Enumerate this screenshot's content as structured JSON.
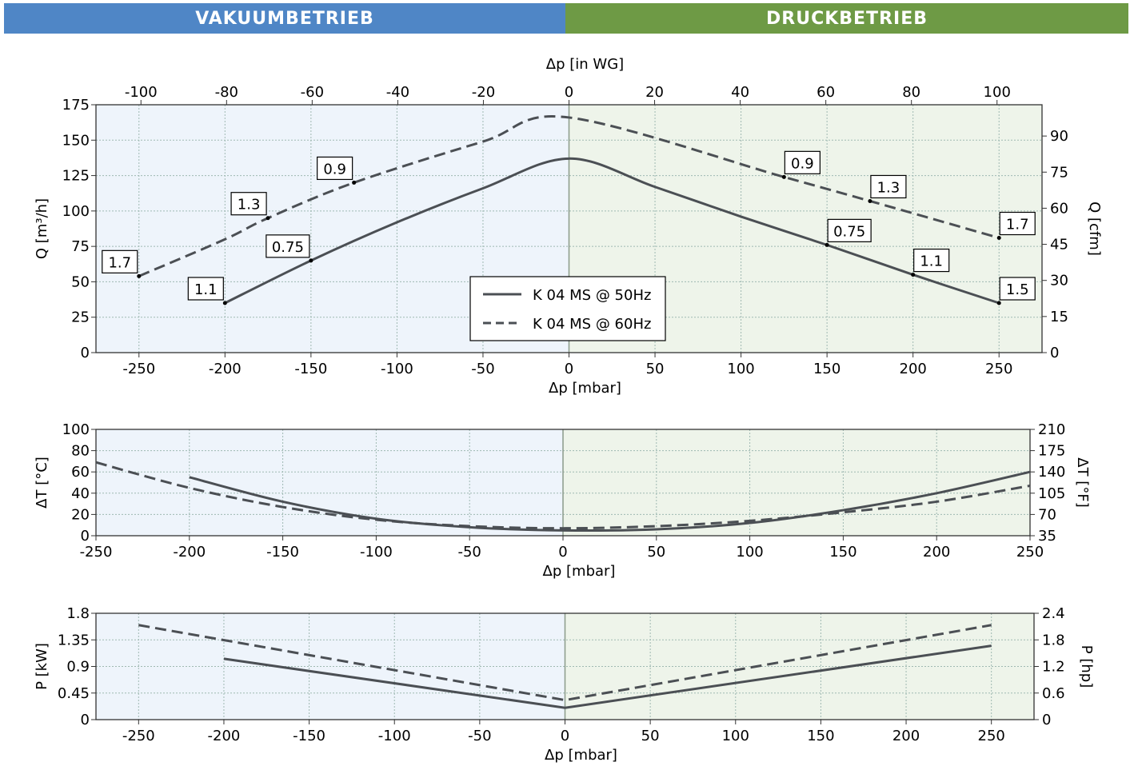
{
  "banners": {
    "left": {
      "label": "VAKUUMBETRIEB",
      "color": "#4f86c6"
    },
    "right": {
      "label": "DRUCKBETRIEB",
      "color": "#6e9a45"
    }
  },
  "colors": {
    "vacuum_bg": "#eef4fb",
    "pressure_bg": "#eef4ea",
    "line": "#4b4f54",
    "grid": "#9fb9b2"
  },
  "legend": {
    "items": [
      {
        "label": "K 04 MS @ 50Hz",
        "style": "solid"
      },
      {
        "label": "K 04 MS @ 60Hz",
        "style": "dashed"
      }
    ]
  },
  "chart_data": [
    {
      "type": "line",
      "xlabel": "Δp [mbar]",
      "xlabel_top": "Δp [in WG]",
      "ylabel": "Q [m³/h]",
      "ylabel_right": "Q [cfm]",
      "xlim": [
        -275,
        275
      ],
      "ylim": [
        0,
        175
      ],
      "ylim_right": [
        0,
        103
      ],
      "x_ticks": [
        -250,
        -200,
        -150,
        -100,
        -50,
        0,
        50,
        100,
        150,
        200,
        250
      ],
      "x_ticks_top": [
        -100,
        -80,
        -60,
        -40,
        -20,
        0,
        20,
        40,
        60,
        80,
        100
      ],
      "y_ticks": [
        0,
        25,
        50,
        75,
        100,
        125,
        150,
        175
      ],
      "y_ticks_right": [
        0,
        15,
        30,
        45,
        60,
        75,
        90
      ],
      "grid": true,
      "legend_position": "bottom-center",
      "series": [
        {
          "name": "K 04 MS @ 50Hz",
          "style": "solid",
          "x": [
            -200,
            -150,
            -100,
            -50,
            0,
            50,
            100,
            150,
            200,
            250
          ],
          "y": [
            35,
            65,
            92,
            116,
            137,
            117,
            96,
            76,
            55,
            35
          ]
        },
        {
          "name": "K 04 MS @ 60Hz",
          "style": "dashed",
          "x": [
            -250,
            -200,
            -175,
            -125,
            -50,
            0,
            125,
            175,
            250
          ],
          "y": [
            54,
            80,
            95,
            120,
            149,
            166,
            124,
            107,
            81
          ]
        }
      ],
      "annotations": [
        {
          "x": -250,
          "y": 54,
          "text": "1.7",
          "pos": "above-left"
        },
        {
          "x": -200,
          "y": 35,
          "text": "1.1",
          "pos": "above-left"
        },
        {
          "x": -175,
          "y": 95,
          "text": "1.3",
          "pos": "above-left"
        },
        {
          "x": -150,
          "y": 65,
          "text": "0.75",
          "pos": "above-left"
        },
        {
          "x": -125,
          "y": 120,
          "text": "0.9",
          "pos": "above-left"
        },
        {
          "x": 125,
          "y": 124,
          "text": "0.9",
          "pos": "above-right"
        },
        {
          "x": 150,
          "y": 76,
          "text": "0.75",
          "pos": "above-right"
        },
        {
          "x": 175,
          "y": 107,
          "text": "1.3",
          "pos": "above-right"
        },
        {
          "x": 200,
          "y": 55,
          "text": "1.1",
          "pos": "above-right"
        },
        {
          "x": 250,
          "y": 81,
          "text": "1.7",
          "pos": "above-right"
        },
        {
          "x": 250,
          "y": 35,
          "text": "1.5",
          "pos": "above-right"
        }
      ]
    },
    {
      "type": "line",
      "xlabel": "Δp [mbar]",
      "ylabel": "ΔT [°C]",
      "ylabel_right": "ΔT [°F]",
      "xlim": [
        -250,
        250
      ],
      "ylim": [
        0,
        100
      ],
      "ylim_right": [
        35,
        210
      ],
      "x_ticks": [
        -250,
        -200,
        -150,
        -100,
        -50,
        0,
        50,
        100,
        150,
        200,
        250
      ],
      "y_ticks": [
        0,
        20,
        40,
        60,
        80,
        100
      ],
      "y_ticks_right": [
        35,
        70,
        105,
        140,
        175,
        210
      ],
      "grid": true,
      "series": [
        {
          "name": "K 04 MS @ 50Hz",
          "style": "solid",
          "x": [
            -200,
            -150,
            -100,
            -50,
            0,
            50,
            100,
            150,
            200,
            250
          ],
          "y": [
            55,
            32,
            16,
            8,
            5,
            6,
            12,
            24,
            40,
            60
          ]
        },
        {
          "name": "K 04 MS @ 60Hz",
          "style": "dashed",
          "x": [
            -250,
            -200,
            -150,
            -100,
            -50,
            0,
            50,
            100,
            150,
            200,
            250
          ],
          "y": [
            69,
            45,
            27,
            15,
            9,
            7,
            9,
            14,
            22,
            32,
            47
          ]
        }
      ]
    },
    {
      "type": "line",
      "xlabel": "Δp [mbar]",
      "ylabel": "P [kW]",
      "ylabel_right": "P [hp]",
      "xlim": [
        -275,
        275
      ],
      "ylim": [
        0,
        1.8
      ],
      "ylim_right": [
        0,
        2.4
      ],
      "x_ticks": [
        -250,
        -200,
        -150,
        -100,
        -50,
        0,
        50,
        100,
        150,
        200,
        250
      ],
      "y_ticks": [
        0,
        0.45,
        0.9,
        1.35,
        1.8
      ],
      "y_ticks_right": [
        0,
        0.6,
        1.2,
        1.8,
        2.4
      ],
      "grid": true,
      "series": [
        {
          "name": "K 04 MS @ 50Hz",
          "style": "solid",
          "x": [
            -200,
            0,
            250
          ],
          "y": [
            1.03,
            0.2,
            1.25
          ]
        },
        {
          "name": "K 04 MS @ 60Hz",
          "style": "dashed",
          "x": [
            -250,
            0,
            250
          ],
          "y": [
            1.6,
            0.33,
            1.6
          ]
        }
      ]
    }
  ]
}
